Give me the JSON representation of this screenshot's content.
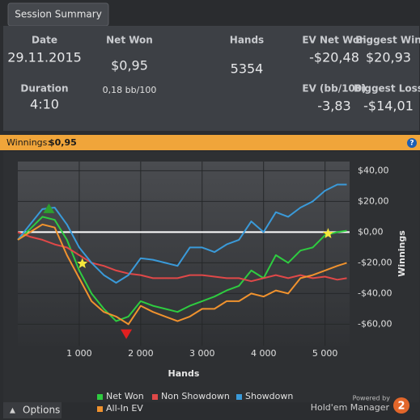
{
  "tab": "Session Summary",
  "stats": [
    {
      "label": "Date",
      "value": "29.11.2015"
    },
    {
      "label": "Duration",
      "value": "4:10"
    },
    {
      "label": "Net Won",
      "value": "$0,95",
      "sub": "0,18 bb/100"
    },
    {
      "label": "Hands",
      "value": "5354"
    },
    {
      "label": "EV Net Won",
      "value": "-$20,48"
    },
    {
      "label": "Biggest Win",
      "value": "$20,93"
    },
    {
      "label": "EV (bb/100)",
      "value": "-3,83"
    },
    {
      "label": "Biggest Loss",
      "value": "-$14,01"
    }
  ],
  "bar": {
    "label": "Winnings:",
    "value": "$0,95",
    "help": "?"
  },
  "chart_data": {
    "type": "line",
    "xlabel": "Hands",
    "ylabel": "Winnings",
    "xlim": [
      0,
      5400
    ],
    "ylim": [
      -74,
      46
    ],
    "xticks": [
      {
        "value": 1000,
        "label": "1 000"
      },
      {
        "value": 2000,
        "label": "2 000"
      },
      {
        "value": 3000,
        "label": "3 000"
      },
      {
        "value": 4000,
        "label": "4 000"
      },
      {
        "value": 5000,
        "label": "5 000"
      }
    ],
    "yticks": [
      {
        "value": 40,
        "label": "$40,00"
      },
      {
        "value": 20,
        "label": "$20,00"
      },
      {
        "value": 0,
        "label": "$0,00"
      },
      {
        "value": -20,
        "label": "-$20,00"
      },
      {
        "value": -40,
        "label": "-$40,00"
      },
      {
        "value": -60,
        "label": "-$60,00"
      }
    ],
    "grid": true,
    "x": [
      0,
      200,
      400,
      600,
      800,
      1000,
      1200,
      1400,
      1600,
      1800,
      2000,
      2200,
      2400,
      2600,
      2800,
      3000,
      3200,
      3400,
      3600,
      3800,
      4000,
      4200,
      4400,
      4600,
      4800,
      5000,
      5200,
      5354
    ],
    "series": [
      {
        "name": "Net Won",
        "color": "#2ecc40",
        "values": [
          -5,
          2,
          10,
          8,
          -5,
          -25,
          -40,
          -50,
          -58,
          -55,
          -45,
          -48,
          -50,
          -52,
          -48,
          -45,
          -42,
          -38,
          -35,
          -25,
          -30,
          -15,
          -20,
          -12,
          -10,
          -2,
          0,
          0.95
        ]
      },
      {
        "name": "Non Showdown",
        "color": "#e04848",
        "values": [
          0,
          -3,
          -5,
          -8,
          -10,
          -15,
          -20,
          -22,
          -25,
          -27,
          -28,
          -30,
          -30,
          -30,
          -28,
          -28,
          -29,
          -30,
          -30,
          -32,
          -30,
          -28,
          -30,
          -28,
          -30,
          -29,
          -31,
          -30
        ]
      },
      {
        "name": "Showdown",
        "color": "#3a9ad9",
        "values": [
          -5,
          5,
          15,
          16,
          5,
          -10,
          -20,
          -28,
          -33,
          -28,
          -17,
          -18,
          -20,
          -22,
          -10,
          -10,
          -13,
          -8,
          -5,
          7,
          0,
          13,
          10,
          16,
          20,
          27,
          31,
          31
        ]
      },
      {
        "name": "All-In EV",
        "color": "#f0922e",
        "values": [
          -5,
          0,
          5,
          3,
          -15,
          -30,
          -45,
          -52,
          -55,
          -60,
          -48,
          -52,
          -55,
          -58,
          -55,
          -50,
          -50,
          -45,
          -45,
          -40,
          -42,
          -38,
          -40,
          -30,
          -28,
          -25,
          -22,
          -20
        ]
      }
    ],
    "markers": [
      {
        "x": 506,
        "y": 15,
        "color": "#2e9e2e",
        "shape": "triangle-up"
      },
      {
        "x": 1766,
        "y": -66,
        "color": "#e02020",
        "shape": "triangle-down"
      },
      {
        "x": 1050,
        "y": -20.5,
        "color": "#f5e63c",
        "shape": "star"
      },
      {
        "x": 5050,
        "y": -1,
        "color": "#f5e63c",
        "shape": "star"
      }
    ]
  },
  "options": "Options",
  "powered": "Powered by",
  "brand": "Hold'em Manager",
  "brand_num": "2"
}
